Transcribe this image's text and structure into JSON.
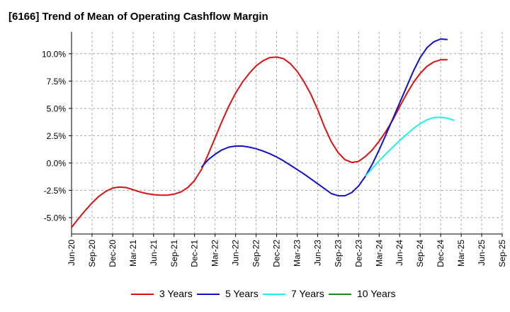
{
  "title": "[6166]  Trend of Mean of Operating Cashflow Margin",
  "chart_data": {
    "type": "line",
    "title": "[6166]  Trend of Mean of Operating Cashflow Margin",
    "xlabel": "",
    "ylabel": "",
    "x_tick_labels": [
      "Jun-20",
      "Sep-20",
      "Dec-20",
      "Mar-21",
      "Jun-21",
      "Sep-21",
      "Dec-21",
      "Mar-22",
      "Jun-22",
      "Sep-22",
      "Dec-22",
      "Mar-23",
      "Jun-23",
      "Sep-23",
      "Dec-23",
      "Mar-24",
      "Jun-24",
      "Sep-24",
      "Dec-24",
      "Mar-25",
      "Jun-25",
      "Sep-25"
    ],
    "y_tick_labels": [
      "10.0%",
      "7.5%",
      "5.0%",
      "2.5%",
      "0.0%",
      "-2.5%",
      "-5.0%"
    ],
    "y_ticks": [
      10.0,
      7.5,
      5.0,
      2.5,
      0.0,
      -2.5,
      -5.0
    ],
    "ylim": [
      -6.5,
      12.0
    ],
    "grid": "horizontal dashed",
    "legend_position": "bottom",
    "series": [
      {
        "name": "3 Years",
        "color": "#dd1111",
        "start_index": 0,
        "values": [
          -5.9,
          -5.1,
          -4.35,
          -3.65,
          -3.05,
          -2.6,
          -2.3,
          -2.2,
          -2.25,
          -2.45,
          -2.65,
          -2.8,
          -2.9,
          -2.95,
          -2.95,
          -2.85,
          -2.65,
          -2.25,
          -1.6,
          -0.6,
          0.8,
          2.3,
          3.8,
          5.2,
          6.4,
          7.4,
          8.2,
          8.9,
          9.35,
          9.65,
          9.7,
          9.55,
          9.1,
          8.4,
          7.45,
          6.3,
          4.9,
          3.3,
          1.95,
          0.95,
          0.3,
          0.05,
          0.15,
          0.6,
          1.2,
          2.0,
          2.9,
          3.95,
          5.15,
          6.3,
          7.35,
          8.2,
          8.85,
          9.25,
          9.45,
          9.45
        ]
      },
      {
        "name": "5 Years",
        "color": "#1111cc",
        "start_index": 19,
        "values": [
          -0.4,
          0.3,
          0.8,
          1.2,
          1.45,
          1.55,
          1.55,
          1.45,
          1.3,
          1.1,
          0.85,
          0.55,
          0.2,
          -0.2,
          -0.6,
          -1.0,
          -1.45,
          -1.9,
          -2.35,
          -2.8,
          -3.0,
          -3.0,
          -2.7,
          -2.1,
          -1.2,
          -0.1,
          1.2,
          2.6,
          4.05,
          5.5,
          6.95,
          8.4,
          9.65,
          10.55,
          11.1,
          11.35,
          11.3
        ]
      },
      {
        "name": "7 Years",
        "color": "#22eeee",
        "start_index": 43,
        "values": [
          -1.2,
          -0.5,
          0.2,
          0.85,
          1.45,
          2.05,
          2.6,
          3.15,
          3.6,
          3.95,
          4.15,
          4.2,
          4.1,
          3.9
        ]
      },
      {
        "name": "10 Years",
        "color": "#228822",
        "start_index": 0,
        "values": []
      }
    ]
  }
}
